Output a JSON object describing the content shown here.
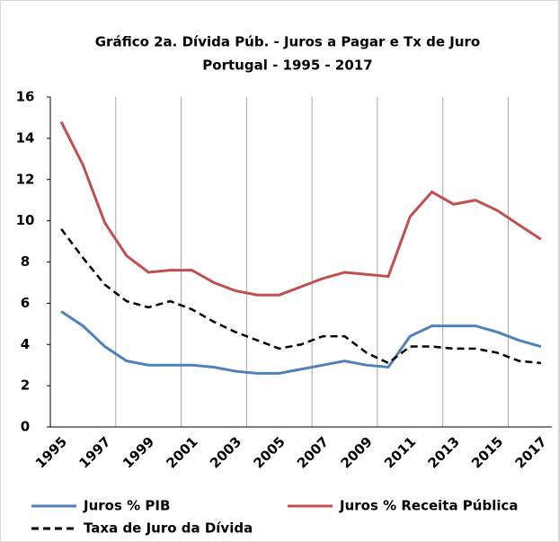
{
  "chart_data": {
    "type": "line",
    "title": "Gráfico  2a. Dívida Púb. - Juros a Pagar  e Tx de Juro",
    "subtitle": "Portugal - 1995 - 2017",
    "categories": [
      "1995",
      null,
      "1997",
      null,
      "1999",
      null,
      "2001",
      null,
      "2003",
      null,
      "2005",
      null,
      "2007",
      null,
      "2009",
      null,
      "2011",
      null,
      "2013",
      null,
      "2015",
      null,
      "2017"
    ],
    "series": [
      {
        "name": "Juros % PIB",
        "color": "#4f81bd",
        "dash": false,
        "values": [
          5.6,
          4.9,
          3.9,
          3.2,
          3.0,
          3.0,
          3.0,
          2.9,
          2.7,
          2.6,
          2.6,
          2.8,
          3.0,
          3.2,
          3.0,
          2.9,
          4.4,
          4.9,
          4.9,
          4.9,
          4.6,
          4.2,
          3.9
        ]
      },
      {
        "name": "Juros % Receita Pública",
        "color": "#c0504d",
        "dash": false,
        "values": [
          14.8,
          12.7,
          9.9,
          8.3,
          7.5,
          7.6,
          7.6,
          7.0,
          6.6,
          6.4,
          6.4,
          6.8,
          7.2,
          7.5,
          7.4,
          7.3,
          10.2,
          11.4,
          10.8,
          11.0,
          10.5,
          9.8,
          9.1
        ]
      },
      {
        "name": "Taxa de Juro da Dívida",
        "color": "#000000",
        "dash": true,
        "values": [
          9.6,
          8.2,
          6.9,
          6.1,
          5.8,
          6.1,
          5.7,
          5.1,
          4.6,
          4.2,
          3.8,
          4.0,
          4.4,
          4.4,
          3.6,
          3.1,
          3.9,
          3.9,
          3.8,
          3.8,
          3.6,
          3.2,
          3.1
        ]
      }
    ],
    "ylim": [
      0,
      16
    ],
    "yticks": [
      0,
      2,
      4,
      6,
      8,
      10,
      12,
      14,
      16
    ]
  }
}
